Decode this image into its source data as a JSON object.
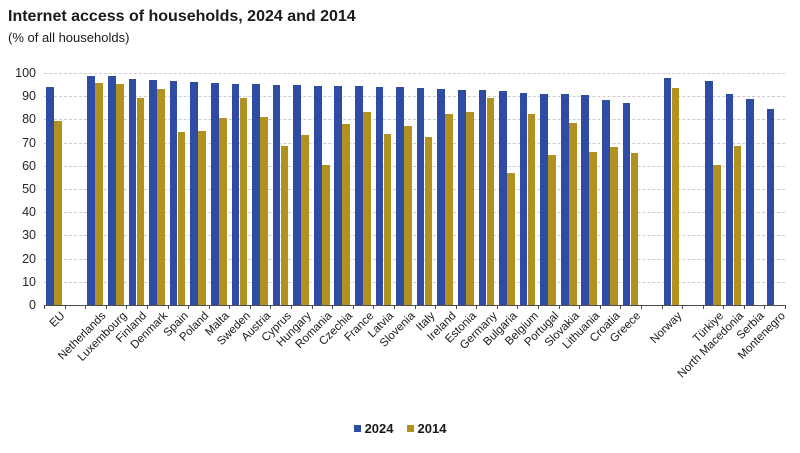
{
  "header": {
    "title": "Internet access of households, 2024 and 2014",
    "subtitle": "(% of all households)"
  },
  "legend": {
    "items": [
      {
        "label": "2024",
        "color": "#2e4ca3"
      },
      {
        "label": "2014",
        "color": "#b19120"
      }
    ]
  },
  "colors": {
    "series_2024": "#2e4ca3",
    "series_2014": "#b19120",
    "gridline": "#cccccc",
    "axis": "#4d4d4d",
    "text": "#1a1a1a",
    "background": "#ffffff"
  },
  "chart_data": {
    "type": "bar",
    "title": "Internet access of households, 2024 and 2014",
    "subtitle": "(% of all households)",
    "xlabel": "",
    "ylabel": "% of all households",
    "ylim": [
      0,
      100
    ],
    "yticks": [
      0,
      10,
      20,
      30,
      40,
      50,
      60,
      70,
      80,
      90,
      100
    ],
    "grid": "horizontal-dashed",
    "legend_position": "bottom-center",
    "bar_grouping": "grouped-pairs",
    "note": "Empty string categories are spacer gaps; null values mean no bar (no data for Serbia and Montenegro in 2014).",
    "categories": [
      "EU",
      "",
      "Netherlands",
      "Luxembourg",
      "Finland",
      "Denmark",
      "Spain",
      "Poland",
      "Malta",
      "Sweden",
      "Austria",
      "Cyprus",
      "Hungary",
      "Romania",
      "Czechia",
      "France",
      "Latvia",
      "Slovenia",
      "Italy",
      "Ireland",
      "Estonia",
      "Germany",
      "Bulgaria",
      "Belgium",
      "Portugal",
      "Slovakia",
      "Lithuania",
      "Croatia",
      "Greece",
      "",
      "Norway",
      "",
      "Türkiye",
      "North Macedonia",
      "Serbia",
      "Montenegro"
    ],
    "series": [
      {
        "name": "2024",
        "color": "#2e4ca3",
        "values": [
          94.0,
          null,
          98.9,
          98.7,
          97.3,
          96.9,
          96.6,
          96.1,
          95.7,
          95.4,
          95.1,
          94.9,
          94.7,
          94.6,
          94.4,
          94.2,
          94.0,
          93.9,
          93.7,
          93.1,
          92.8,
          92.5,
          92.1,
          91.6,
          91.0,
          90.8,
          90.6,
          88.4,
          87.0,
          null,
          98.0,
          null,
          96.4,
          91.1,
          88.7,
          84.7
        ]
      },
      {
        "name": "2014",
        "color": "#b19120",
        "values": [
          79.3,
          null,
          95.6,
          95.4,
          89.3,
          92.9,
          74.4,
          74.8,
          80.5,
          89.4,
          81.2,
          68.7,
          73.3,
          60.4,
          78.2,
          83.1,
          73.5,
          77.1,
          72.5,
          82.4,
          83.2,
          89.4,
          56.9,
          82.3,
          64.8,
          78.5,
          66.0,
          68.2,
          65.6,
          null,
          93.4,
          null,
          60.4,
          68.5,
          null,
          null
        ]
      }
    ]
  }
}
